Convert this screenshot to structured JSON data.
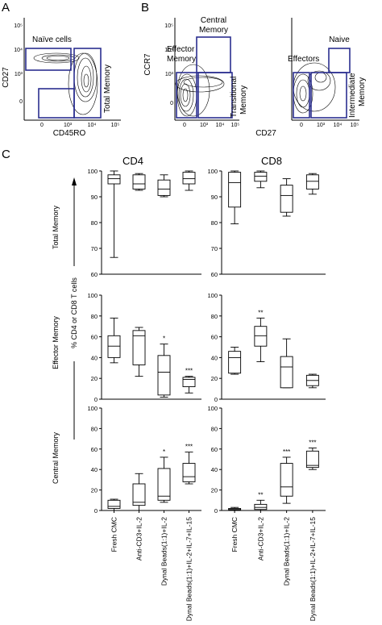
{
  "panels": {
    "A": "A",
    "B": "B",
    "C": "C"
  },
  "flow": {
    "A": {
      "ylabel": "CD27",
      "xlabel": "CD45RO",
      "gates": {
        "naive": "Naïve cells",
        "total": "Total Memory"
      },
      "yticks": [
        "10⁵",
        "10⁴",
        "10³",
        "0"
      ],
      "xticks": [
        "0",
        "10³",
        "10⁴",
        "10⁵"
      ]
    },
    "B1": {
      "ylabel": "CCR7",
      "gates": {
        "central": [
          "Central",
          "Memory"
        ],
        "effector": [
          "Effector",
          "Memory"
        ],
        "transitional": [
          "Transitional",
          "Memory"
        ]
      },
      "yticks": [
        "10⁵",
        "10⁴",
        "10³",
        "0"
      ],
      "xticks": [
        "0",
        "10³",
        "10⁴",
        "10⁵"
      ]
    },
    "B2": {
      "xlabel_shared": "CD27",
      "gates": {
        "naive": "Naive",
        "effectors": "Effectors",
        "intermediate": [
          "Intermediate",
          "Memory"
        ]
      },
      "xticks": [
        "0",
        "10³",
        "10⁴",
        "10⁵"
      ]
    }
  },
  "chart_data": {
    "type": "boxplot",
    "column_titles": [
      "CD4",
      "CD8"
    ],
    "shared_ylabel": "% CD4 or CD8 T cells",
    "categories": [
      "Fresh CMC",
      "Anti-CD3+IL-2",
      "Dynal Beads(1:1)+IL-2",
      "Dynal Beads(1:1)+IL-2+IL-7+IL-15"
    ],
    "rows": [
      {
        "title": "Total Memory",
        "ylim": [
          60,
          100
        ],
        "yticks": [
          "60",
          "70",
          "80",
          "90",
          "100"
        ],
        "CD4": [
          {
            "min": 66.5,
            "q1": 95,
            "median": 97,
            "q3": 98.5,
            "max": 100,
            "sig": ""
          },
          {
            "min": 92.5,
            "q1": 93,
            "median": 95,
            "q3": 98.5,
            "max": 99,
            "sig": ""
          },
          {
            "min": 90,
            "q1": 90.5,
            "median": 93,
            "q3": 96.5,
            "max": 98.5,
            "sig": ""
          },
          {
            "min": 92.5,
            "q1": 95,
            "median": 97,
            "q3": 99.5,
            "max": 100,
            "sig": ""
          }
        ],
        "CD8": [
          {
            "min": 79.5,
            "q1": 86,
            "median": 95.5,
            "q3": 99.5,
            "max": 100,
            "sig": ""
          },
          {
            "min": 93.5,
            "q1": 96,
            "median": 98,
            "q3": 99.5,
            "max": 100,
            "sig": ""
          },
          {
            "min": 82.5,
            "q1": 84,
            "median": 90.5,
            "q3": 94.5,
            "max": 97,
            "sig": ""
          },
          {
            "min": 91,
            "q1": 93,
            "median": 96,
            "q3": 98.5,
            "max": 99,
            "sig": ""
          }
        ]
      },
      {
        "title": "Effector Memory",
        "ylim": [
          0,
          100
        ],
        "yticks": [
          "0",
          "20",
          "40",
          "60",
          "80",
          "100"
        ],
        "CD4": [
          {
            "min": 35,
            "q1": 40,
            "median": 51,
            "q3": 61,
            "max": 78,
            "sig": ""
          },
          {
            "min": 22,
            "q1": 33,
            "median": 61,
            "q3": 66,
            "max": 69,
            "sig": ""
          },
          {
            "min": 2,
            "q1": 4,
            "median": 26,
            "q3": 42,
            "max": 53,
            "sig": "*"
          },
          {
            "min": 6,
            "q1": 12,
            "median": 19,
            "q3": 21,
            "max": 22,
            "sig": "***"
          }
        ],
        "CD8": [
          {
            "min": 24,
            "q1": 25,
            "median": 40,
            "q3": 46,
            "max": 50,
            "sig": ""
          },
          {
            "min": 36,
            "q1": 51,
            "median": 61,
            "q3": 70,
            "max": 78,
            "sig": "**"
          },
          {
            "min": 11,
            "q1": 11,
            "median": 31,
            "q3": 41,
            "max": 58,
            "sig": ""
          },
          {
            "min": 11,
            "q1": 13,
            "median": 18,
            "q3": 23,
            "max": 24,
            "sig": ""
          }
        ]
      },
      {
        "title": "Central Memory",
        "ylim": [
          0,
          100
        ],
        "yticks": [
          "0",
          "20",
          "40",
          "60",
          "80",
          "100"
        ],
        "CD4": [
          {
            "min": 0,
            "q1": 2,
            "median": 4,
            "q3": 10,
            "max": 11,
            "sig": ""
          },
          {
            "min": 0,
            "q1": 5,
            "median": 8,
            "q3": 26,
            "max": 36,
            "sig": ""
          },
          {
            "min": 8,
            "q1": 10,
            "median": 14,
            "q3": 41,
            "max": 52,
            "sig": "*"
          },
          {
            "min": 26,
            "q1": 28,
            "median": 33,
            "q3": 46,
            "max": 57,
            "sig": "***"
          }
        ],
        "CD8": [
          {
            "min": 0,
            "q1": 0.5,
            "median": 1,
            "q3": 2,
            "max": 3,
            "sig": ""
          },
          {
            "min": 0,
            "q1": 1,
            "median": 3,
            "q3": 6,
            "max": 10,
            "sig": "**"
          },
          {
            "min": 7,
            "q1": 14,
            "median": 23,
            "q3": 46,
            "max": 52,
            "sig": "***"
          },
          {
            "min": 40,
            "q1": 42,
            "median": 44,
            "q3": 58,
            "max": 61,
            "sig": "***"
          }
        ]
      }
    ]
  }
}
